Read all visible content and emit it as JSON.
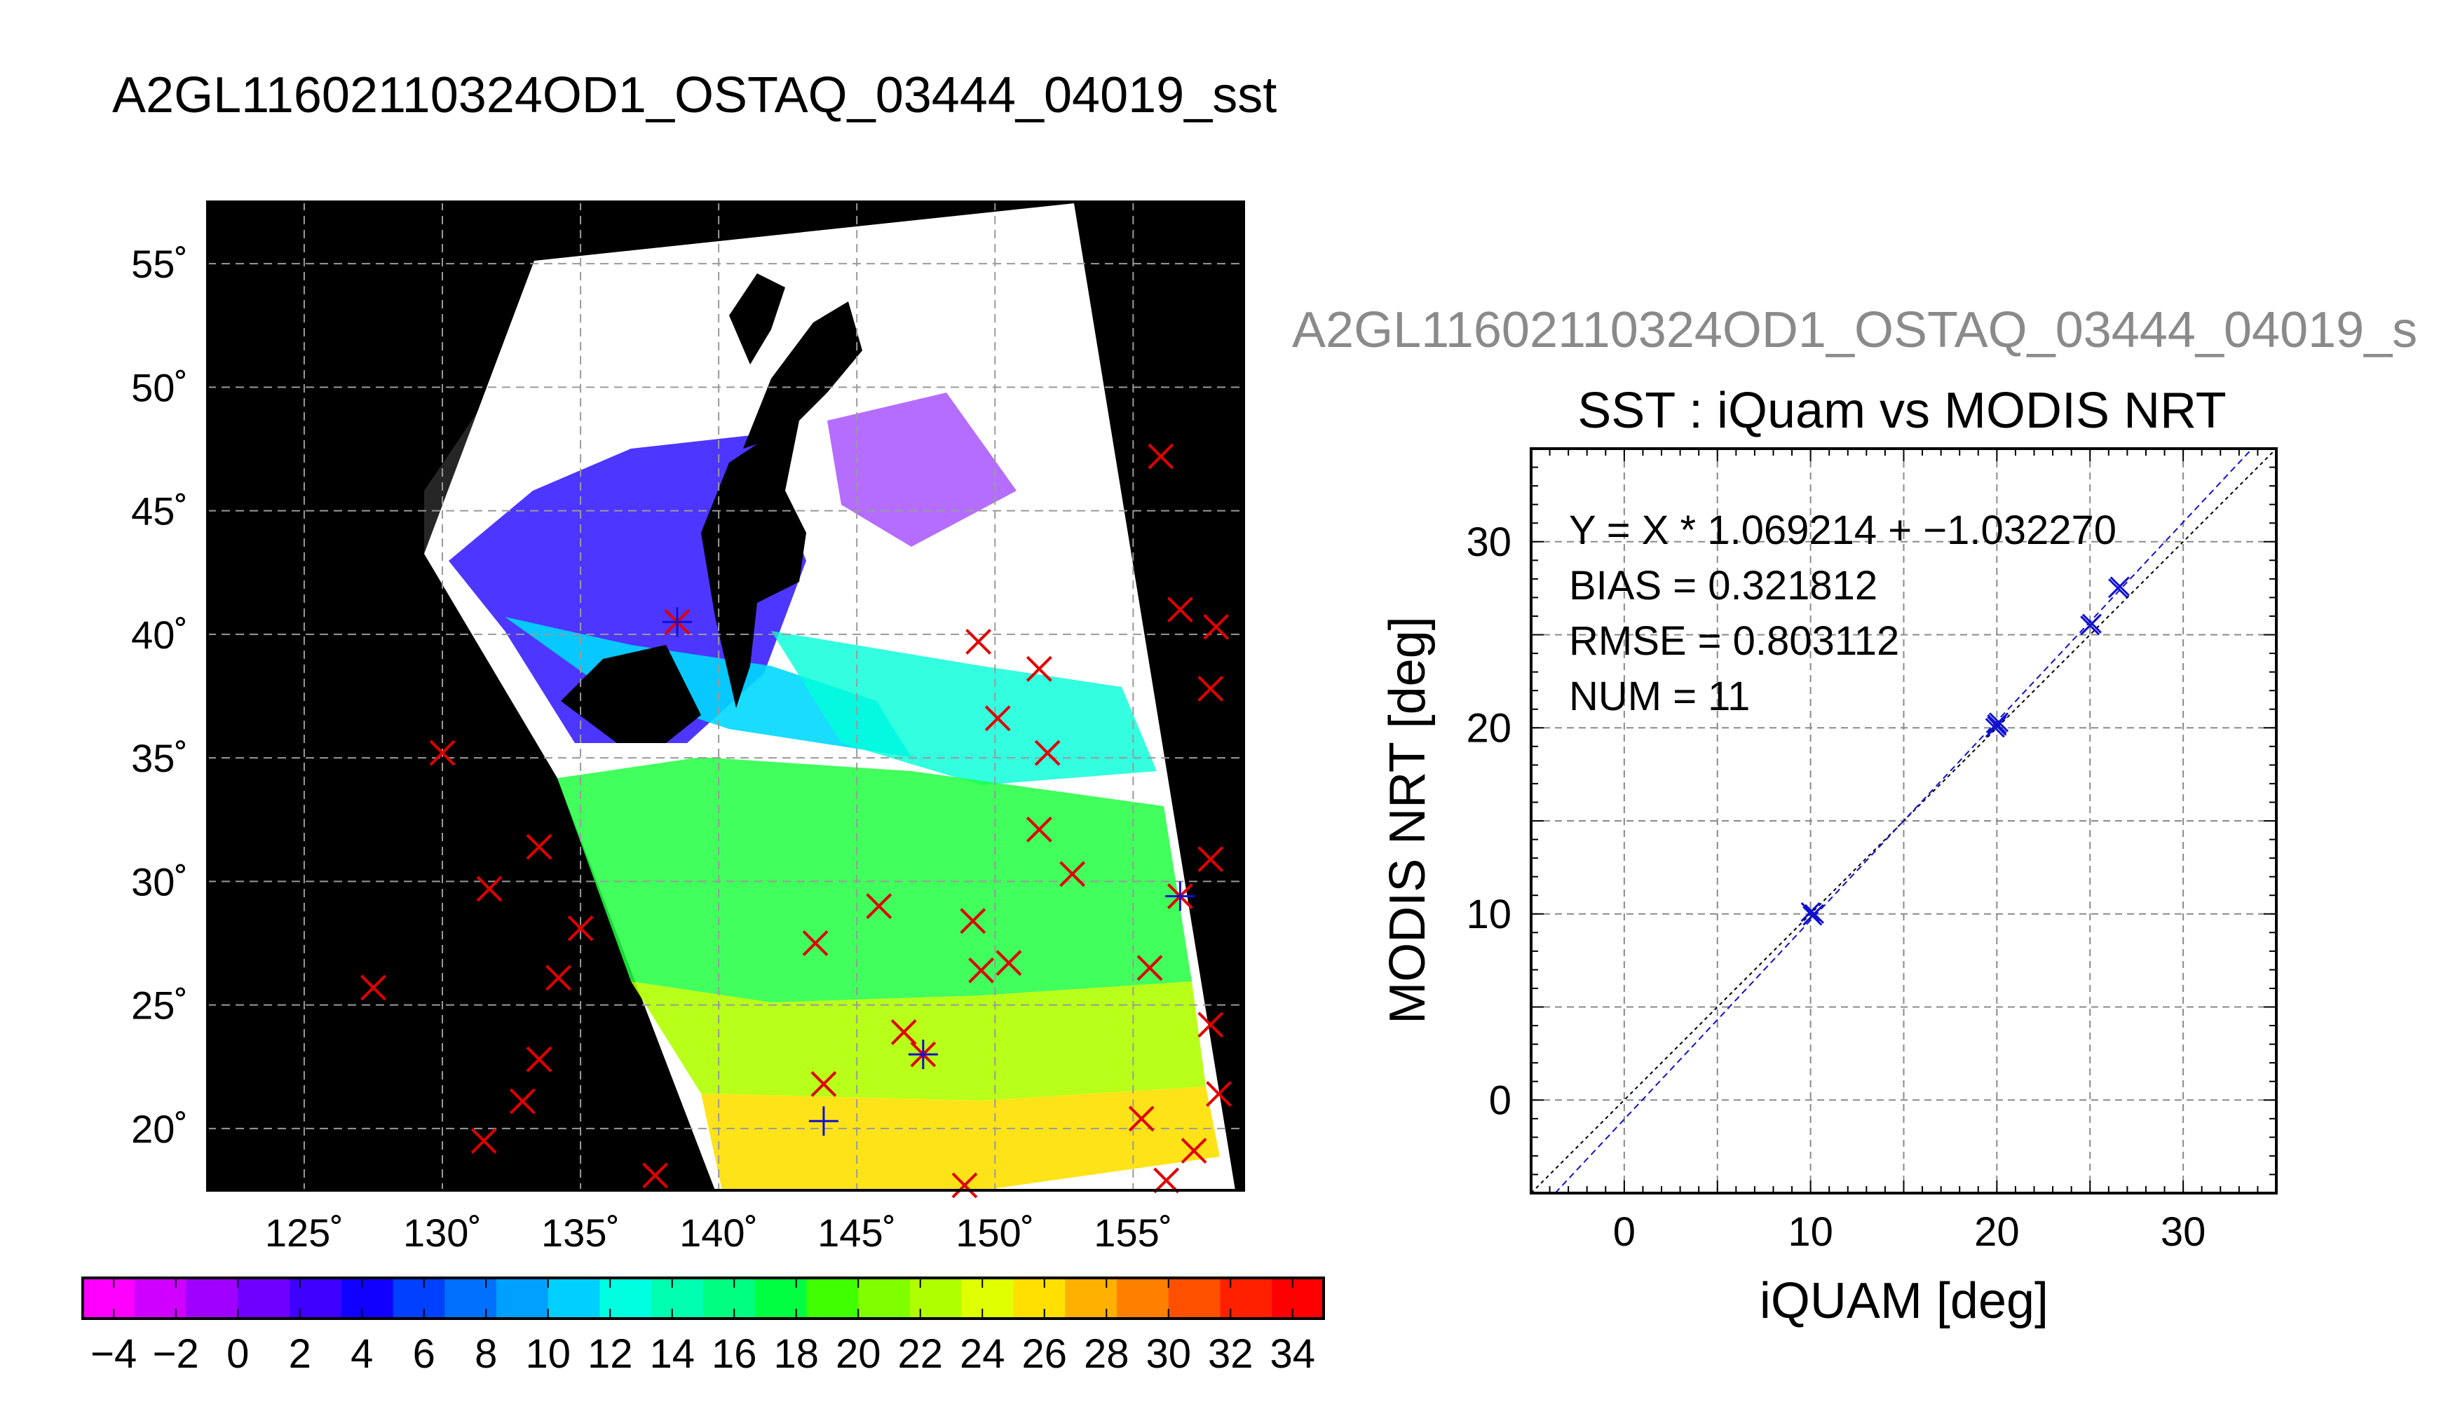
{
  "figure": {
    "title": "A2GL11602110324OD1_OSTAQ_03444_04019_sst",
    "title_right": "A2GL11602110324OD1_OSTAQ_03444_04019_s"
  },
  "colors": {
    "land": "#000000",
    "no_data": "#ffffff",
    "marker_red": "#e00000",
    "marker_blue": "#1010d0",
    "grid": "#9a9a9a"
  },
  "chart_data": [
    {
      "type": "map",
      "lon_ticks": [
        "125˚",
        "130˚",
        "135˚",
        "140˚",
        "145˚",
        "150˚",
        "155˚"
      ],
      "lat_ticks": [
        "55˚",
        "50˚",
        "45˚",
        "40˚",
        "35˚",
        "30˚",
        "25˚",
        "20˚"
      ],
      "lon_values": [
        125,
        130,
        135,
        140,
        145,
        150,
        155
      ],
      "lat_values": [
        55,
        50,
        45,
        40,
        35,
        30,
        25,
        20
      ],
      "xlim": [
        121.5,
        159
      ],
      "ylim": [
        17.5,
        57.5
      ],
      "grid": true,
      "red_markers": [
        [
          138.5,
          40.5
        ],
        [
          130,
          35.2
        ],
        [
          127.5,
          25.7
        ],
        [
          131.7,
          29.7
        ],
        [
          133.5,
          31.4
        ],
        [
          135,
          28.1
        ],
        [
          134.2,
          26.1
        ],
        [
          133.5,
          22.8
        ],
        [
          132.9,
          21.1
        ],
        [
          131.5,
          19.5
        ],
        [
          137.7,
          18.1
        ],
        [
          143.8,
          21.8
        ],
        [
          143.5,
          27.5
        ],
        [
          145.8,
          29
        ],
        [
          146.7,
          23.9
        ],
        [
          147.4,
          23
        ],
        [
          149.2,
          28.4
        ],
        [
          149.5,
          26.4
        ],
        [
          150.5,
          26.7
        ],
        [
          148.9,
          17.7
        ],
        [
          149.4,
          39.7
        ],
        [
          150.1,
          36.6
        ],
        [
          151.6,
          38.6
        ],
        [
          151.9,
          35.2
        ],
        [
          151.6,
          32.1
        ],
        [
          152.8,
          30.3
        ],
        [
          155.3,
          20.4
        ],
        [
          155.6,
          26.5
        ],
        [
          156,
          47.2
        ],
        [
          156.7,
          41
        ],
        [
          158,
          40.3
        ],
        [
          157.8,
          37.8
        ],
        [
          157.8,
          30.9
        ],
        [
          157.8,
          24.2
        ],
        [
          158.1,
          21.4
        ],
        [
          156.2,
          17.9
        ],
        [
          157.2,
          19.1
        ],
        [
          156.7,
          29.4
        ]
      ],
      "blue_markers": [
        [
          138.5,
          40.5
        ],
        [
          143.8,
          20.3
        ],
        [
          147.4,
          23
        ],
        [
          156.7,
          29.4
        ]
      ]
    },
    {
      "type": "scatter",
      "title": "SST : iQuam vs MODIS NRT",
      "xlabel": "iQUAM [deg]",
      "ylabel": "MODIS NRT [deg]",
      "xlim": [
        -5,
        35
      ],
      "ylim": [
        -5,
        35
      ],
      "x_ticks": [
        "0",
        "10",
        "20",
        "30"
      ],
      "y_ticks": [
        "0",
        "10",
        "20",
        "30"
      ],
      "x_tick_values": [
        0,
        10,
        20,
        30
      ],
      "y_tick_values": [
        0,
        10,
        20,
        30
      ],
      "grid": true,
      "stats": {
        "fit": "Y = X * 1.069214 + −1.032270",
        "bias": "BIAS = 0.321812",
        "rmse": "RMSE = 0.803112",
        "num": "NUM = 11"
      },
      "fit_slope": 1.069214,
      "fit_intercept": -1.03227,
      "points": [
        [
          10.2,
          10.0
        ],
        [
          10.0,
          10.1
        ],
        [
          20.0,
          20.1
        ],
        [
          20.1,
          20.3
        ],
        [
          19.9,
          20.0
        ],
        [
          25.0,
          25.5
        ],
        [
          25.1,
          25.6
        ],
        [
          26.5,
          27.5
        ],
        [
          26.6,
          27.6
        ],
        [
          10.1,
          9.9
        ],
        [
          20.0,
          20.2
        ]
      ],
      "colors": {
        "points": "#1010d0",
        "fit_line": "#1010d0",
        "identity_line": "#000000"
      }
    },
    {
      "type": "colorbar",
      "min": -5,
      "max": 35,
      "tick_labels": [
        "−4",
        "−2",
        "0",
        "2",
        "4",
        "6",
        "8",
        "10",
        "12",
        "14",
        "16",
        "18",
        "20",
        "22",
        "24",
        "26",
        "28",
        "30",
        "32",
        "34"
      ],
      "tick_values": [
        -4,
        -2,
        0,
        2,
        4,
        6,
        8,
        10,
        12,
        14,
        16,
        18,
        20,
        22,
        24,
        26,
        28,
        30,
        32,
        34
      ],
      "colors": [
        "#ff00ff",
        "#cf00ff",
        "#9f00ff",
        "#6f00ff",
        "#3f00ff",
        "#0f00ff",
        "#0040ff",
        "#0070ff",
        "#00a0ff",
        "#00d0ff",
        "#00ffe0",
        "#00ffb0",
        "#00ff80",
        "#00ff40",
        "#40ff00",
        "#80ff00",
        "#b0ff00",
        "#e0ff00",
        "#ffe000",
        "#ffb000",
        "#ff8000",
        "#ff5000",
        "#ff2000",
        "#ff0000"
      ]
    }
  ]
}
